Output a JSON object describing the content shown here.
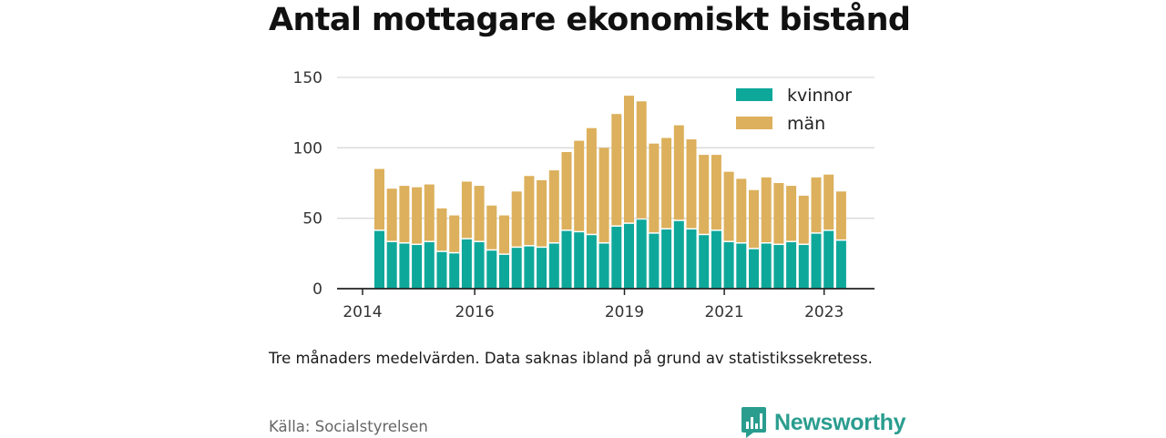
{
  "chart_data": {
    "type": "bar",
    "stacked": true,
    "title": "Antal mottagare ekonomiskt bistånd",
    "xlabel": "",
    "ylabel": "",
    "ylim": [
      0,
      150
    ],
    "y_ticks": [
      0,
      50,
      100,
      150
    ],
    "x_tick_labels": [
      "2014",
      "2016",
      "2019",
      "2021",
      "2023"
    ],
    "x_tick_positions": [
      0,
      8,
      20,
      28,
      36
    ],
    "grid": "horizontal",
    "legend_position": "top-right",
    "categories": [
      "1",
      "2",
      "3",
      "4",
      "5",
      "6",
      "7",
      "8",
      "9",
      "10",
      "11",
      "12",
      "13",
      "14",
      "15",
      "16",
      "17",
      "18",
      "19",
      "20",
      "21",
      "22",
      "23",
      "24",
      "25",
      "26",
      "27",
      "28",
      "29",
      "30",
      "31",
      "32",
      "33",
      "34",
      "35",
      "36",
      "37",
      "38",
      "39"
    ],
    "series": [
      {
        "name": "kvinnor",
        "color": "#0ea89a",
        "values": [
          41,
          33,
          32,
          31,
          33,
          26,
          25,
          35,
          33,
          27,
          24,
          29,
          30,
          29,
          32,
          41,
          40,
          38,
          32,
          44,
          46,
          49,
          39,
          42,
          48,
          42,
          38,
          41,
          33,
          32,
          28,
          32,
          31,
          33,
          31,
          39,
          41,
          34,
          0
        ]
      },
      {
        "name": "män",
        "color": "#dcb05c",
        "values": [
          44,
          38,
          41,
          41,
          41,
          31,
          27,
          41,
          40,
          32,
          28,
          40,
          50,
          48,
          52,
          56,
          65,
          76,
          68,
          80,
          91,
          84,
          64,
          65,
          68,
          64,
          57,
          54,
          50,
          46,
          42,
          47,
          44,
          40,
          35,
          40,
          40,
          35,
          0
        ]
      }
    ]
  },
  "note": "Tre månaders medelvärden. Data saknas ibland på grund av statistikssekretess.",
  "source": "Källa: Socialstyrelsen",
  "brand": "Newsworthy"
}
